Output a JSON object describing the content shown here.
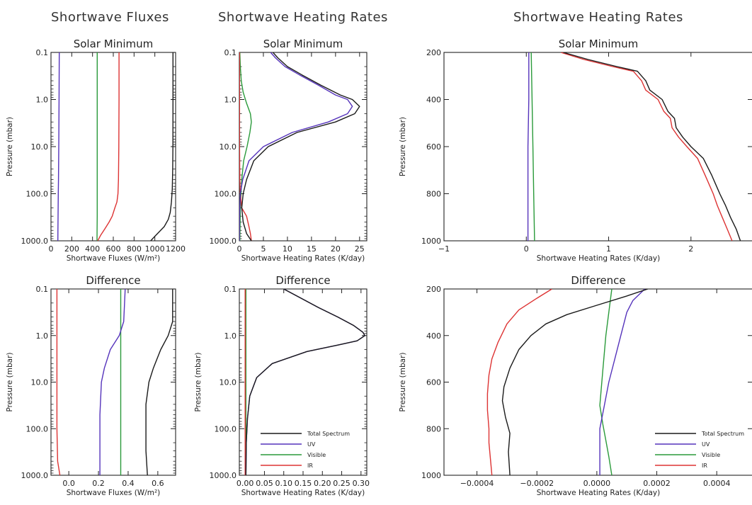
{
  "group_titles": {
    "fluxes": "Shortwave Fluxes",
    "heating_left": "Shortwave Heating Rates",
    "heating_right": "Shortwave Heating Rates"
  },
  "colors": {
    "total": "#1a1a1a",
    "uv": "#5533bb",
    "visible": "#2a9a3a",
    "ir": "#dd3333"
  },
  "chart_data": [
    {
      "type": "line",
      "title": "Solar Minimum",
      "xlabel": "Shortwave Fluxes (W/m²)",
      "ylabel": "Pressure (mbar)",
      "xlim": [
        0,
        1200
      ],
      "ylim": [
        0.1,
        1000
      ],
      "y_scale": "log",
      "x_ticks": [
        0,
        200,
        400,
        600,
        800,
        1000,
        1200
      ],
      "x_tick_labels": [
        "0",
        "200",
        "400",
        "600",
        "800",
        "1000",
        "1200"
      ],
      "y_ticks": [
        0.1,
        1,
        10,
        100,
        1000
      ],
      "y_tick_labels": [
        "0.1",
        "1.0",
        "10.0",
        "100.0",
        "1000.0"
      ],
      "series": [
        {
          "key": "total",
          "x": [
            1175,
            1175,
            1174,
            1172,
            1168,
            1160,
            1148,
            1130,
            1090,
            1040,
            1000,
            960
          ],
          "y": [
            0.1,
            1,
            10,
            30,
            80,
            150,
            250,
            350,
            500,
            650,
            800,
            1000
          ]
        },
        {
          "key": "uv",
          "x": [
            80,
            78,
            75,
            72,
            70,
            68,
            67,
            66
          ],
          "y": [
            0.1,
            1,
            10,
            50,
            100,
            300,
            600,
            1000
          ]
        },
        {
          "key": "visible",
          "x": [
            445,
            445,
            445,
            445,
            445,
            444,
            443
          ],
          "y": [
            0.1,
            1,
            10,
            100,
            300,
            600,
            1000
          ]
        },
        {
          "key": "ir",
          "x": [
            655,
            655,
            653,
            650,
            645,
            635,
            615,
            590,
            560,
            520,
            480,
            450
          ],
          "y": [
            0.1,
            1,
            10,
            50,
            100,
            150,
            200,
            300,
            400,
            550,
            750,
            1000
          ]
        }
      ]
    },
    {
      "type": "line",
      "title": "Solar Minimum",
      "xlabel": "Shortwave Heating Rates (K/day)",
      "ylabel": "",
      "xlim": [
        0,
        26.5
      ],
      "ylim": [
        0.1,
        1000
      ],
      "y_scale": "log",
      "x_ticks": [
        0,
        5,
        10,
        15,
        20,
        25
      ],
      "x_tick_labels": [
        "0",
        "5",
        "10",
        "15",
        "20",
        "25"
      ],
      "y_ticks": [
        0.1,
        1,
        10,
        100,
        1000
      ],
      "y_tick_labels": [
        "0.1",
        "1.0",
        "10.0",
        "100.0",
        "1000.0"
      ],
      "series": [
        {
          "key": "total",
          "x": [
            7,
            8,
            10,
            13,
            17,
            21,
            23.5,
            25,
            24,
            20,
            12,
            6,
            3,
            1.5,
            0.8,
            0.5,
            0.8,
            1.5,
            2.5
          ],
          "y": [
            0.1,
            0.13,
            0.2,
            0.3,
            0.5,
            0.8,
            1,
            1.4,
            2,
            3,
            5,
            10,
            20,
            50,
            100,
            200,
            400,
            700,
            1000
          ]
        },
        {
          "key": "uv",
          "x": [
            6.5,
            7.5,
            9.5,
            12.5,
            16.5,
            20,
            22.5,
            23.5,
            22.5,
            18.5,
            11,
            5,
            2,
            0.7,
            0.2,
            0.05,
            0.02
          ],
          "y": [
            0.1,
            0.13,
            0.2,
            0.3,
            0.5,
            0.8,
            1,
            1.4,
            2,
            3,
            5,
            10,
            20,
            50,
            100,
            300,
            1000
          ]
        },
        {
          "key": "visible",
          "x": [
            0.1,
            0.2,
            0.4,
            0.8,
            1.5,
            2.3,
            2.5,
            2.2,
            1.6,
            0.9,
            0.5,
            0.2,
            0.1
          ],
          "y": [
            0.1,
            0.2,
            0.4,
            0.7,
            1.2,
            2,
            3,
            5,
            10,
            20,
            50,
            200,
            1000
          ]
        },
        {
          "key": "ir",
          "x": [
            0.05,
            0.05,
            0.05,
            0.1,
            0.2,
            0.5,
            1.5,
            2,
            2.3,
            2.5
          ],
          "y": [
            0.1,
            1,
            10,
            50,
            100,
            200,
            300,
            500,
            700,
            1000
          ]
        }
      ]
    },
    {
      "type": "line",
      "title": "Solar Minimum",
      "xlabel": "Shortwave Heating Rates (K/day)",
      "ylabel": "Pressure (mbar)",
      "xlim": [
        -1,
        2.75
      ],
      "ylim": [
        200,
        1000
      ],
      "y_scale": "linear",
      "y_inverted": true,
      "x_ticks": [
        -1,
        0,
        1,
        2
      ],
      "x_tick_labels": [
        "−1",
        "0",
        "1",
        "2"
      ],
      "y_ticks": [
        200,
        400,
        600,
        800,
        1000
      ],
      "y_tick_labels": [
        "200",
        "400",
        "600",
        "800",
        "1000"
      ],
      "series": [
        {
          "key": "total",
          "x": [
            0.45,
            0.75,
            1.1,
            1.35,
            1.45,
            1.5,
            1.65,
            1.72,
            1.8,
            1.82,
            1.9,
            2.0,
            2.15,
            2.25,
            2.3,
            2.35,
            2.42,
            2.48,
            2.55,
            2.6
          ],
          "y": [
            200,
            230,
            260,
            280,
            320,
            360,
            400,
            450,
            480,
            520,
            560,
            600,
            650,
            720,
            760,
            800,
            850,
            900,
            950,
            1000
          ]
        },
        {
          "key": "uv",
          "x": [
            0.03,
            0.03,
            0.02,
            0.02,
            0.02
          ],
          "y": [
            200,
            400,
            600,
            800,
            1000
          ]
        },
        {
          "key": "visible",
          "x": [
            0.06,
            0.07,
            0.08,
            0.09,
            0.1
          ],
          "y": [
            200,
            400,
            600,
            800,
            1000
          ]
        },
        {
          "key": "ir",
          "x": [
            0.42,
            0.7,
            1.05,
            1.3,
            1.4,
            1.45,
            1.6,
            1.67,
            1.75,
            1.77,
            1.85,
            1.95,
            2.08,
            2.17,
            2.22,
            2.27,
            2.32,
            2.38,
            2.44,
            2.5
          ],
          "y": [
            200,
            230,
            260,
            280,
            320,
            360,
            400,
            450,
            480,
            520,
            560,
            600,
            650,
            720,
            760,
            800,
            850,
            900,
            950,
            1000
          ]
        }
      ]
    },
    {
      "type": "line",
      "title": "Difference",
      "xlabel": "Shortwave Fluxes (W/m²)",
      "ylabel": "Pressure (mbar)",
      "xlim": [
        -0.12,
        0.72
      ],
      "ylim": [
        0.1,
        1000
      ],
      "y_scale": "log",
      "x_ticks": [
        0,
        0.2,
        0.4,
        0.6
      ],
      "x_tick_labels": [
        "0.0",
        "0.2",
        "0.4",
        "0.6"
      ],
      "y_ticks": [
        0.1,
        1,
        10,
        100,
        1000
      ],
      "y_tick_labels": [
        "0.1",
        "1.0",
        "10.0",
        "100.0",
        "1000.0"
      ],
      "series": [
        {
          "key": "total",
          "x": [
            0.7,
            0.7,
            0.67,
            0.62,
            0.57,
            0.54,
            0.52,
            0.52,
            0.52,
            0.53
          ],
          "y": [
            0.1,
            0.5,
            1,
            2,
            5,
            10,
            30,
            100,
            300,
            1000
          ]
        },
        {
          "key": "uv",
          "x": [
            0.38,
            0.37,
            0.34,
            0.28,
            0.24,
            0.22,
            0.21,
            0.21,
            0.21
          ],
          "y": [
            0.1,
            0.5,
            1,
            2,
            5,
            10,
            50,
            300,
            1000
          ]
        },
        {
          "key": "visible",
          "x": [
            0.35,
            0.35,
            0.35,
            0.35,
            0.35,
            0.35
          ],
          "y": [
            0.1,
            1,
            10,
            100,
            500,
            1000
          ]
        },
        {
          "key": "ir",
          "x": [
            -0.08,
            -0.08,
            -0.08,
            -0.08,
            -0.075,
            -0.06
          ],
          "y": [
            0.1,
            1,
            10,
            100,
            500,
            1000
          ]
        }
      ]
    },
    {
      "type": "line",
      "title": "Difference",
      "xlabel": "Shortwave Heating Rates (K/day)",
      "ylabel": "Pressure (mbar)",
      "xlim": [
        -0.015,
        0.315
      ],
      "ylim": [
        0.1,
        1000
      ],
      "y_scale": "log",
      "x_ticks": [
        0,
        0.05,
        0.1,
        0.15,
        0.2,
        0.25,
        0.3
      ],
      "x_tick_labels": [
        "0.00",
        "0.05",
        "0.10",
        "0.15",
        "0.20",
        "0.25",
        "0.30"
      ],
      "y_ticks": [
        0.1,
        1,
        10,
        100,
        1000
      ],
      "y_tick_labels": [
        "0.1",
        "1.0",
        "10.0",
        "100.0",
        "1000.0"
      ],
      "legend": {
        "position": "lower-right",
        "entries": [
          {
            "key": "total",
            "label": "Total Spectrum"
          },
          {
            "key": "uv",
            "label": "UV"
          },
          {
            "key": "visible",
            "label": "Visible"
          },
          {
            "key": "ir",
            "label": "IR"
          }
        ]
      },
      "series": [
        {
          "key": "total",
          "x": [
            0.1,
            0.14,
            0.19,
            0.24,
            0.28,
            0.305,
            0.31,
            0.29,
            0.24,
            0.16,
            0.07,
            0.03,
            0.012,
            0.006,
            0.003,
            0.002
          ],
          "y": [
            0.1,
            0.15,
            0.25,
            0.4,
            0.6,
            0.85,
            1,
            1.3,
            1.6,
            2.2,
            4,
            8,
            20,
            60,
            200,
            1000
          ]
        },
        {
          "key": "uv",
          "x": [
            0.1,
            0.14,
            0.19,
            0.24,
            0.28,
            0.305,
            0.31,
            0.29,
            0.24,
            0.16,
            0.07,
            0.03,
            0.012,
            0.006,
            0.003,
            0.002
          ],
          "y": [
            0.1,
            0.15,
            0.25,
            0.4,
            0.6,
            0.85,
            1,
            1.3,
            1.6,
            2.2,
            4,
            8,
            20,
            60,
            200,
            1000
          ]
        },
        {
          "key": "visible",
          "x": [
            0.002,
            0.002,
            0.002,
            0.002,
            0.002
          ],
          "y": [
            0.1,
            1,
            10,
            100,
            1000
          ]
        },
        {
          "key": "ir",
          "x": [
            0,
            0,
            0,
            0,
            0
          ],
          "y": [
            0.1,
            1,
            10,
            100,
            1000
          ]
        }
      ]
    },
    {
      "type": "line",
      "title": "Difference",
      "xlabel": "Shortwave Heating Rates (K/day)",
      "ylabel": "Pressure (mbar)",
      "xlim": [
        -0.00051,
        0.00052
      ],
      "ylim": [
        200,
        1000
      ],
      "y_scale": "linear",
      "y_inverted": true,
      "x_ticks": [
        -0.0004,
        -0.0002,
        0,
        0.0002,
        0.0004
      ],
      "x_tick_labels": [
        "−0.0004",
        "−0.0002",
        "0.0000",
        "0.0002",
        "0.0004"
      ],
      "y_ticks": [
        200,
        400,
        600,
        800,
        1000
      ],
      "y_tick_labels": [
        "200",
        "400",
        "600",
        "800",
        "1000"
      ],
      "legend": {
        "position": "lower-right",
        "entries": [
          {
            "key": "total",
            "label": "Total Spectrum"
          },
          {
            "key": "uv",
            "label": "UV"
          },
          {
            "key": "visible",
            "label": "Visible"
          },
          {
            "key": "ir",
            "label": "IR"
          }
        ]
      },
      "series": [
        {
          "key": "total",
          "x": [
            0.00017,
            0.0001,
            0,
            -0.0001,
            -0.00017,
            -0.00022,
            -0.00026,
            -0.00029,
            -0.00031,
            -0.000315,
            -0.000305,
            -0.00029,
            -0.000295,
            -0.00029
          ],
          "y": [
            200,
            230,
            270,
            310,
            350,
            400,
            460,
            540,
            620,
            680,
            750,
            820,
            900,
            1000
          ]
        },
        {
          "key": "uv",
          "x": [
            0.00016,
            0.00012,
            0.0001,
            8e-05,
            6e-05,
            4e-05,
            2.5e-05,
            1e-05,
            1e-05
          ],
          "y": [
            200,
            250,
            300,
            400,
            500,
            600,
            700,
            800,
            1000
          ]
        },
        {
          "key": "visible",
          "x": [
            5e-05,
            4e-05,
            3e-05,
            2e-05,
            1e-05,
            2e-05,
            3e-05,
            4e-05,
            5e-05
          ],
          "y": [
            200,
            300,
            400,
            550,
            700,
            780,
            850,
            920,
            1000
          ]
        },
        {
          "key": "ir",
          "x": [
            -0.00015,
            -0.0002,
            -0.00026,
            -0.0003,
            -0.00033,
            -0.00035,
            -0.00036,
            -0.000365,
            -0.000365,
            -0.00036,
            -0.00036,
            -0.000355,
            -0.00035
          ],
          "y": [
            200,
            240,
            290,
            350,
            430,
            500,
            570,
            650,
            720,
            800,
            860,
            930,
            1000
          ]
        }
      ]
    }
  ]
}
